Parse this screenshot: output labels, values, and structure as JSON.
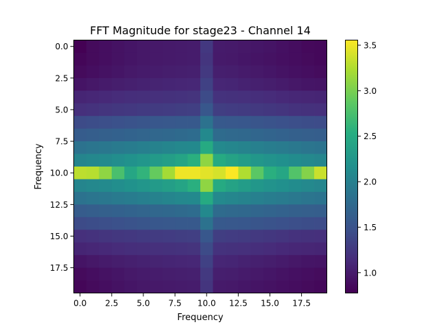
{
  "chart_data": {
    "type": "heatmap",
    "title": "FFT Magnitude for stage23 - Channel 14",
    "xlabel": "Frequency",
    "ylabel": "Frequency",
    "rows": 20,
    "cols": 20,
    "x_ticks": [
      "0.0",
      "2.5",
      "5.0",
      "7.5",
      "10.0",
      "12.5",
      "15.0",
      "17.5"
    ],
    "x_tick_values": [
      0,
      2.5,
      5,
      7.5,
      10,
      12.5,
      15,
      17.5
    ],
    "y_ticks": [
      "0.0",
      "2.5",
      "5.0",
      "7.5",
      "10.0",
      "12.5",
      "15.0",
      "17.5"
    ],
    "y_tick_values": [
      0,
      2.5,
      5,
      7.5,
      10,
      12.5,
      15,
      17.5
    ],
    "colorbar": {
      "min": 0.78,
      "max": 3.56,
      "ticks": [
        "1.0",
        "1.5",
        "2.0",
        "2.5",
        "3.0",
        "3.5"
      ],
      "tick_values": [
        1.0,
        1.5,
        2.0,
        2.5,
        3.0,
        3.5
      ]
    },
    "colormap": "viridis",
    "values": [
      [
        0.78,
        0.86,
        0.89,
        0.92,
        0.95,
        0.97,
        0.98,
        0.99,
        1.0,
        1.01,
        1.25,
        1.0,
        0.99,
        0.97,
        0.96,
        0.94,
        0.91,
        0.88,
        0.85,
        0.84
      ],
      [
        0.82,
        0.86,
        0.89,
        0.92,
        0.95,
        0.97,
        0.98,
        0.99,
        1.0,
        1.01,
        1.22,
        0.99,
        0.98,
        0.96,
        0.94,
        0.92,
        0.9,
        0.88,
        0.86,
        0.84
      ],
      [
        0.86,
        0.89,
        0.92,
        0.95,
        0.98,
        1.0,
        1.01,
        1.02,
        1.03,
        1.04,
        1.26,
        1.03,
        1.02,
        1.0,
        0.98,
        0.96,
        0.93,
        0.91,
        0.89,
        0.87
      ],
      [
        0.94,
        0.97,
        1.0,
        1.02,
        1.04,
        1.06,
        1.07,
        1.08,
        1.09,
        1.1,
        1.33,
        1.09,
        1.08,
        1.06,
        1.04,
        1.02,
        1.0,
        0.97,
        0.95,
        0.94
      ],
      [
        1.08,
        1.1,
        1.12,
        1.14,
        1.16,
        1.17,
        1.18,
        1.19,
        1.2,
        1.21,
        1.42,
        1.2,
        1.19,
        1.18,
        1.16,
        1.14,
        1.12,
        1.1,
        1.09,
        1.08
      ],
      [
        1.18,
        1.2,
        1.22,
        1.24,
        1.25,
        1.27,
        1.28,
        1.29,
        1.3,
        1.31,
        1.54,
        1.3,
        1.29,
        1.28,
        1.26,
        1.24,
        1.22,
        1.2,
        1.19,
        1.18
      ],
      [
        1.42,
        1.44,
        1.46,
        1.48,
        1.5,
        1.52,
        1.54,
        1.55,
        1.56,
        1.57,
        1.85,
        1.56,
        1.55,
        1.54,
        1.52,
        1.5,
        1.48,
        1.46,
        1.44,
        1.43
      ],
      [
        1.6,
        1.62,
        1.64,
        1.66,
        1.68,
        1.7,
        1.72,
        1.74,
        1.76,
        1.78,
        2.1,
        1.77,
        1.75,
        1.73,
        1.71,
        1.69,
        1.67,
        1.65,
        1.63,
        1.62
      ],
      [
        1.85,
        1.88,
        1.9,
        1.93,
        1.96,
        1.99,
        2.02,
        2.05,
        2.08,
        2.1,
        2.5,
        2.09,
        2.06,
        2.03,
        2.0,
        1.97,
        1.94,
        1.91,
        1.88,
        1.86
      ],
      [
        2.05,
        2.08,
        2.11,
        2.15,
        2.19,
        2.24,
        2.29,
        2.35,
        2.42,
        2.55,
        3.1,
        2.5,
        2.4,
        2.32,
        2.26,
        2.21,
        2.17,
        2.13,
        2.09,
        2.06
      ],
      [
        3.3,
        3.28,
        3.1,
        2.75,
        2.45,
        2.6,
        2.9,
        3.2,
        3.5,
        3.5,
        3.45,
        3.4,
        3.55,
        3.25,
        2.85,
        2.55,
        2.45,
        2.8,
        3.05,
        3.35
      ],
      [
        2.05,
        2.08,
        2.11,
        2.15,
        2.19,
        2.24,
        2.29,
        2.35,
        2.42,
        2.55,
        3.1,
        2.5,
        2.4,
        2.32,
        2.26,
        2.21,
        2.17,
        2.13,
        2.09,
        2.06
      ],
      [
        1.85,
        1.88,
        1.9,
        1.93,
        1.96,
        1.99,
        2.02,
        2.05,
        2.08,
        2.1,
        2.5,
        2.09,
        2.06,
        2.03,
        2.0,
        1.97,
        1.94,
        1.91,
        1.88,
        1.86
      ],
      [
        1.6,
        1.62,
        1.64,
        1.66,
        1.68,
        1.7,
        1.72,
        1.74,
        1.76,
        1.78,
        2.1,
        1.77,
        1.75,
        1.73,
        1.71,
        1.69,
        1.67,
        1.65,
        1.63,
        1.62
      ],
      [
        1.42,
        1.44,
        1.46,
        1.48,
        1.5,
        1.52,
        1.54,
        1.55,
        1.56,
        1.57,
        1.85,
        1.56,
        1.55,
        1.54,
        1.52,
        1.5,
        1.48,
        1.46,
        1.44,
        1.43
      ],
      [
        1.18,
        1.2,
        1.22,
        1.24,
        1.25,
        1.27,
        1.28,
        1.29,
        1.3,
        1.31,
        1.54,
        1.3,
        1.29,
        1.28,
        1.26,
        1.24,
        1.22,
        1.2,
        1.19,
        1.18
      ],
      [
        1.08,
        1.1,
        1.12,
        1.14,
        1.16,
        1.17,
        1.18,
        1.19,
        1.2,
        1.21,
        1.42,
        1.2,
        1.19,
        1.18,
        1.16,
        1.14,
        1.12,
        1.1,
        1.09,
        1.08
      ],
      [
        0.94,
        0.97,
        1.0,
        1.02,
        1.04,
        1.06,
        1.07,
        1.08,
        1.09,
        1.1,
        1.33,
        1.09,
        1.08,
        1.06,
        1.04,
        1.02,
        1.0,
        0.97,
        0.95,
        0.94
      ],
      [
        0.86,
        0.89,
        0.92,
        0.95,
        0.98,
        1.0,
        1.01,
        1.02,
        1.03,
        1.04,
        1.26,
        1.03,
        1.02,
        1.0,
        0.98,
        0.96,
        0.93,
        0.91,
        0.89,
        0.87
      ],
      [
        0.82,
        0.86,
        0.89,
        0.92,
        0.95,
        0.97,
        0.98,
        0.99,
        1.0,
        1.01,
        1.22,
        0.99,
        0.98,
        0.96,
        0.94,
        0.92,
        0.9,
        0.88,
        0.86,
        0.84
      ]
    ]
  }
}
